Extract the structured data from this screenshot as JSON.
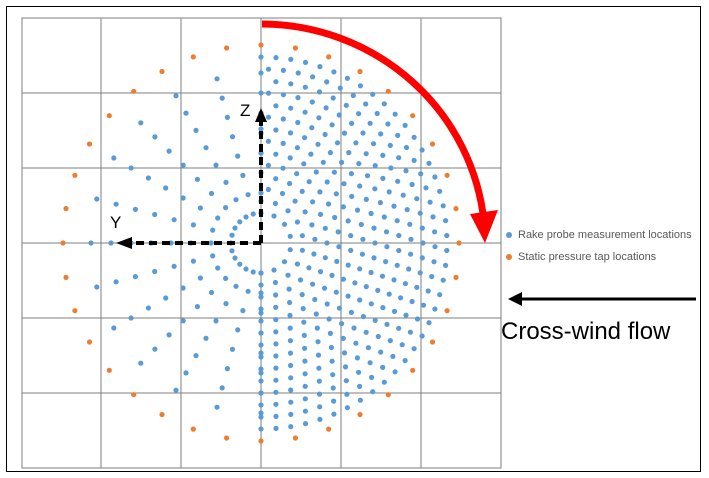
{
  "axes": {
    "z_label": "Z",
    "y_label": "Y"
  },
  "legend": {
    "items": [
      {
        "label": "Rake probe measurement locations",
        "color": "#5b9bd5"
      },
      {
        "label": "Static pressure tap locations",
        "color": "#ed7d31"
      }
    ]
  },
  "flow": {
    "label": "Cross-wind flow",
    "arrow_color": "#000000"
  },
  "rotation_arrow": {
    "color": "#ff0000"
  },
  "colors": {
    "grid": "#7f7f7f",
    "probe": "#5b9bd5",
    "tap": "#ed7d31",
    "axis": "#000000"
  }
}
